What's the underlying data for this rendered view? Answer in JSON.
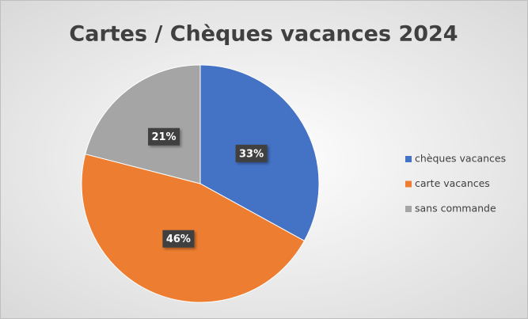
{
  "chart_data": {
    "type": "pie",
    "title": "Cartes / Chèques vacances 2024",
    "categories": [
      "chèques vacances",
      "carte vacances",
      "sans commande"
    ],
    "values": [
      33,
      46,
      21
    ],
    "value_labels": [
      "33%",
      "46%",
      "21%"
    ],
    "colors": [
      "#4472c4",
      "#ed7d31",
      "#a5a5a5"
    ],
    "legend": "right"
  }
}
